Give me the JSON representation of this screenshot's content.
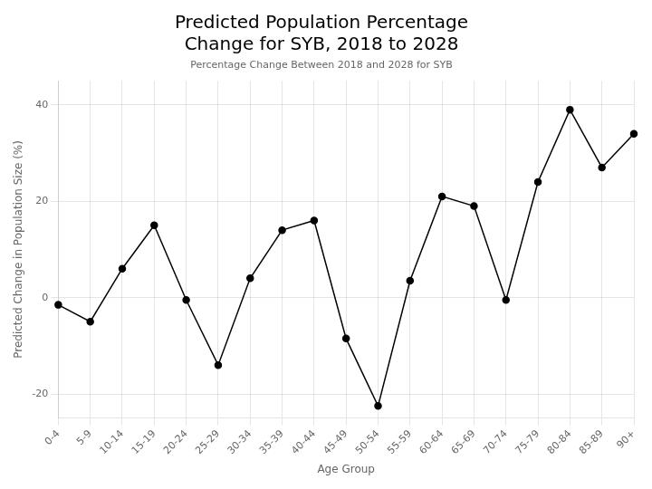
{
  "chart_data": {
    "type": "line",
    "title": "Predicted Population Percentage\nChange for SYB, 2018 to 2028",
    "subtitle": "Percentage Change Between 2018 and 2028 for SYB",
    "xlabel": "Age Group",
    "ylabel": "Predicted Change in Population Size (%)",
    "categories": [
      "0-4",
      "5-9",
      "10-14",
      "15-19",
      "20-24",
      "25-29",
      "30-34",
      "35-39",
      "40-44",
      "45-49",
      "50-54",
      "55-59",
      "60-64",
      "65-69",
      "70-74",
      "75-79",
      "80-84",
      "85-89",
      "90+"
    ],
    "values": [
      -1.5,
      -5.0,
      6.0,
      15.0,
      -0.5,
      -14.0,
      4.0,
      14.0,
      16.0,
      -8.5,
      -22.5,
      3.5,
      21.0,
      19.0,
      -0.5,
      24.0,
      39.0,
      27.0,
      34.0
    ],
    "color": "#000000",
    "marker": "circle",
    "ylim": [
      -25,
      45
    ],
    "yticks": [
      -20,
      0,
      20,
      40
    ],
    "grid": true
  }
}
